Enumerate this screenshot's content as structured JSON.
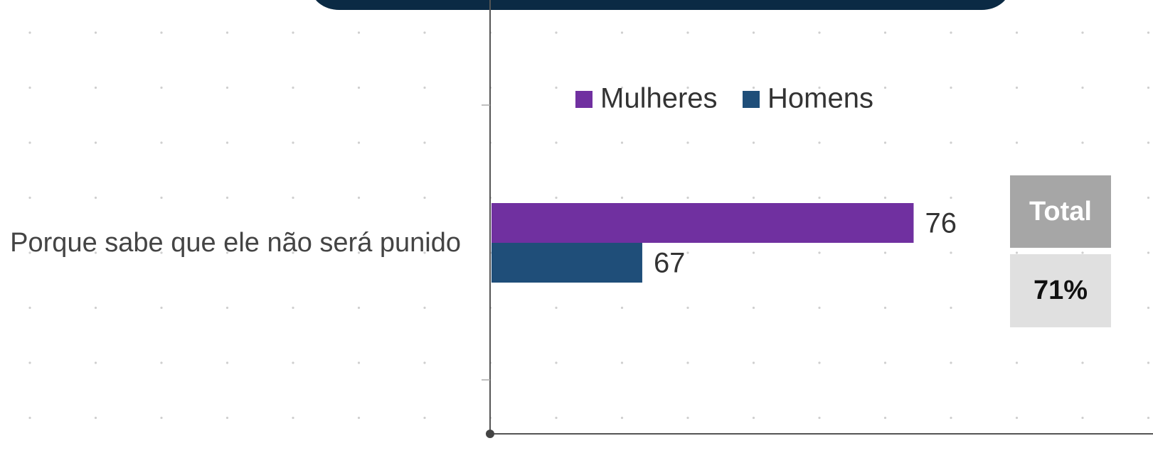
{
  "chart_data": {
    "type": "bar",
    "orientation": "horizontal",
    "categories": [
      "Porque sabe que ele não será punido"
    ],
    "series": [
      {
        "name": "Mulheres",
        "color": "#7030a0",
        "values": [
          76
        ]
      },
      {
        "name": "Homens",
        "color": "#1f4e79",
        "values": [
          67
        ]
      }
    ],
    "xlim": [
      62,
      82.5
    ],
    "total_label": "Total",
    "total_value": 71,
    "total_value_label": "71%"
  }
}
